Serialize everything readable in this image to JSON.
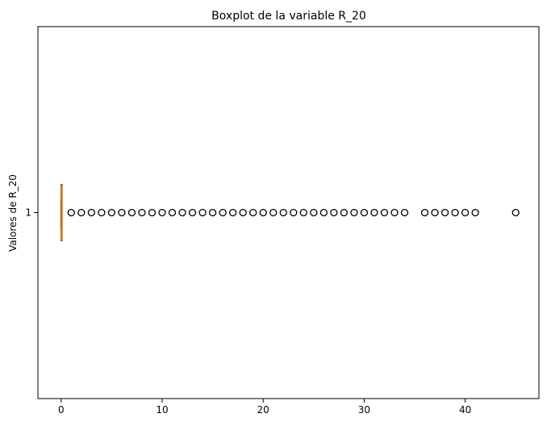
{
  "chart_data": {
    "type": "boxplot",
    "orientation": "horizontal",
    "title": "Boxplot de la variable R_20",
    "xlabel": "",
    "ylabel": "Valores de R_20",
    "xlim": [
      -2.3,
      47.3
    ],
    "x_ticks": [
      0,
      10,
      20,
      30,
      40
    ],
    "y_ticks": [
      1
    ],
    "box": {
      "category": "1",
      "min": 0,
      "q1": 0,
      "median": 0,
      "q3": 0.1,
      "max": 0.1
    },
    "outliers": [
      1,
      2,
      3,
      4,
      5,
      6,
      7,
      8,
      9,
      10,
      11,
      12,
      13,
      14,
      15,
      16,
      17,
      18,
      19,
      20,
      21,
      22,
      23,
      24,
      25,
      26,
      27,
      28,
      29,
      30,
      31,
      32,
      33,
      34,
      36,
      37,
      38,
      39,
      40,
      41,
      45
    ],
    "colors": {
      "box": "#000000",
      "median": "#ff7f0e",
      "outlier_edge": "#000000"
    },
    "grid": false
  }
}
